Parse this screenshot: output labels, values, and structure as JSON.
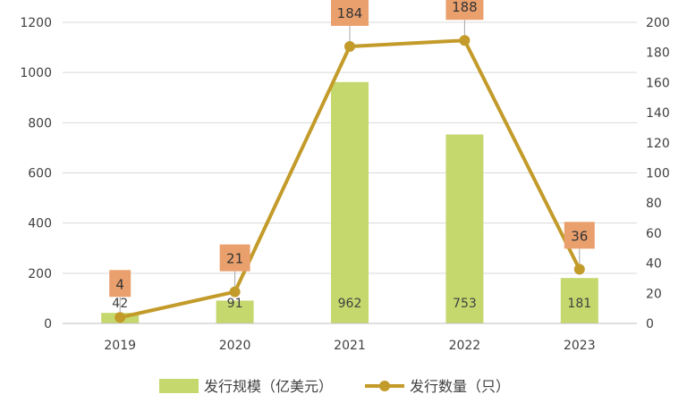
{
  "chart_data": {
    "type": "bar",
    "categories": [
      "2019",
      "2020",
      "2021",
      "2022",
      "2023"
    ],
    "series": [
      {
        "name": "发行规模（亿美元）",
        "type": "bar",
        "axis": "left",
        "values": [
          42,
          91,
          962,
          753,
          181
        ],
        "color": "#c5d86d"
      },
      {
        "name": "发行数量（只）",
        "type": "line",
        "axis": "right",
        "values": [
          4,
          21,
          184,
          188,
          36
        ],
        "color": "#c39b2a",
        "label_box_color": "#eaa06d"
      }
    ],
    "y_left": {
      "ylim": [
        0,
        1200
      ],
      "ticks": [
        "0",
        "200",
        "400",
        "600",
        "800",
        "1000",
        "1200"
      ]
    },
    "y_right": {
      "ylim": [
        0,
        200
      ],
      "ticks": [
        "0",
        "20",
        "40",
        "60",
        "80",
        "100",
        "120",
        "140",
        "160",
        "180",
        "200"
      ]
    },
    "title": "",
    "xlabel": "",
    "ylabel": "",
    "grid": true,
    "legend": "bottom"
  }
}
